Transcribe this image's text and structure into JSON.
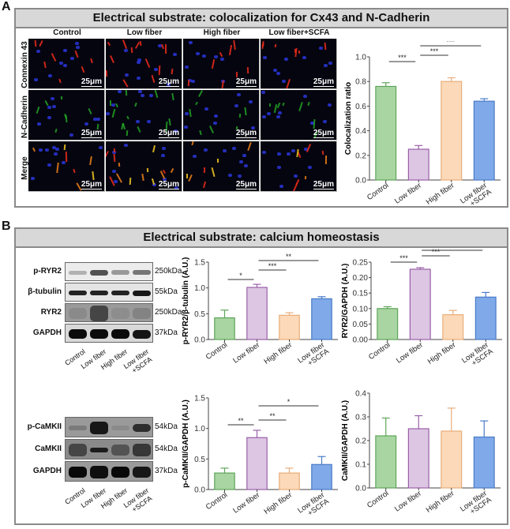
{
  "panel_a": {
    "letter": "A",
    "title": "Electrical substrate: colocalization for Cx43 and N-Cadherin",
    "columns": [
      "Control",
      "Low fiber",
      "High fiber",
      "Low fiber+SCFA"
    ],
    "rows": [
      "Connexin 43",
      "N-Cadherin",
      "Merge"
    ],
    "scale_bar": "25μm"
  },
  "panel_b": {
    "letter": "B",
    "title": "Electrical substrate: calcium homeostasis",
    "blot_top": {
      "bands": [
        {
          "label": "p-RYR2",
          "kda": "250kDa"
        },
        {
          "label": "β-tubulin",
          "kda": "55kDa"
        },
        {
          "label": "RYR2",
          "kda": "250kDa"
        },
        {
          "label": "GAPDH",
          "kda": "37kDa"
        }
      ],
      "lanes": [
        "Control",
        "Low fiber",
        "High fiber",
        "Low fiber",
        "+SCFA"
      ]
    },
    "blot_bottom": {
      "bands": [
        {
          "label": "p-CaMKII",
          "kda": "54kDa"
        },
        {
          "label": "CaMKII",
          "kda": "54kDa"
        },
        {
          "label": "GAPDH",
          "kda": "37kDa"
        }
      ],
      "lanes": [
        "Control",
        "Low fiber",
        "High fiber",
        "Low fiber",
        "+SCFA"
      ]
    }
  },
  "colors": {
    "control": {
      "fill": "#a8d5a2",
      "stroke": "#5fa55a"
    },
    "low_fiber": {
      "fill": "#dcc6e3",
      "stroke": "#9a5fa8"
    },
    "high_fiber": {
      "fill": "#fcd9b8",
      "stroke": "#e8ad7a"
    },
    "low_fiber_scfa": {
      "fill": "#7fa9e8",
      "stroke": "#4a7bc8"
    }
  },
  "chart_data": [
    {
      "type": "bar",
      "id": "colocalization",
      "categories": [
        "Control",
        "Low fiber",
        "High fiber",
        "Low fiber +SCFA"
      ],
      "values": [
        0.76,
        0.25,
        0.8,
        0.64
      ],
      "errors": [
        0.03,
        0.03,
        0.03,
        0.02
      ],
      "title": "",
      "xlabel": "",
      "ylabel": "Colocalization ratio",
      "ylim": [
        0,
        1.0
      ],
      "yticks": [
        "0.0",
        "0.2",
        "0.4",
        "0.6",
        "0.8",
        "1.0"
      ],
      "significance": [
        {
          "from": "Control",
          "to": "Low fiber",
          "label": "***"
        },
        {
          "from": "Low fiber",
          "to": "High fiber",
          "label": "***"
        },
        {
          "from": "Low fiber",
          "to": "Low fiber +SCFA",
          "label": "***"
        }
      ]
    },
    {
      "type": "bar",
      "id": "p_ryr2_tubulin",
      "categories": [
        "Control",
        "Low fiber",
        "High fiber",
        "Low fiber +SCFA"
      ],
      "values": [
        0.42,
        1.01,
        0.47,
        0.79
      ],
      "errors": [
        0.15,
        0.06,
        0.05,
        0.04
      ],
      "ylabel": "p-RYR2/β-tubulin (A.U.)",
      "ylim": [
        0,
        1.5
      ],
      "yticks": [
        "0.0",
        "0.5",
        "1.0",
        "1.5"
      ],
      "significance": [
        {
          "from": "Control",
          "to": "Low fiber",
          "label": "*"
        },
        {
          "from": "Low fiber",
          "to": "High fiber",
          "label": "***"
        },
        {
          "from": "Low fiber",
          "to": "Low fiber +SCFA",
          "label": "**"
        }
      ]
    },
    {
      "type": "bar",
      "id": "ryr2_gapdh",
      "categories": [
        "Control",
        "Low fiber",
        "High fiber",
        "Low fiber +SCFA"
      ],
      "values": [
        0.1,
        0.227,
        0.08,
        0.137
      ],
      "errors": [
        0.006,
        0.005,
        0.014,
        0.015
      ],
      "ylabel": "RYR2/GAPDH (A.U.)",
      "ylim": [
        0,
        0.25
      ],
      "yticks": [
        "0.00",
        "0.05",
        "0.10",
        "0.15",
        "0.20",
        "0.25"
      ],
      "significance": [
        {
          "from": "Control",
          "to": "Low fiber",
          "label": "***"
        },
        {
          "from": "Low fiber",
          "to": "High fiber",
          "label": "***"
        },
        {
          "from": "Low fiber",
          "to": "Low fiber +SCFA",
          "label": "**"
        }
      ]
    },
    {
      "type": "bar",
      "id": "p_camkii_gapdh",
      "categories": [
        "Control",
        "Low fiber",
        "High fiber",
        "Low fiber +SCFA"
      ],
      "values": [
        0.27,
        0.85,
        0.27,
        0.41
      ],
      "errors": [
        0.08,
        0.12,
        0.08,
        0.13
      ],
      "ylabel": "p-CaMKII/GAPDH (A.U.)",
      "ylim": [
        0,
        1.5
      ],
      "yticks": [
        "0.0",
        "0.5",
        "1.0",
        "1.5"
      ],
      "significance": [
        {
          "from": "Control",
          "to": "Low fiber",
          "label": "**"
        },
        {
          "from": "Low fiber",
          "to": "High fiber",
          "label": "**"
        },
        {
          "from": "Low fiber",
          "to": "Low fiber +SCFA",
          "label": "*"
        }
      ]
    },
    {
      "type": "bar",
      "id": "camkii_gapdh",
      "categories": [
        "Control",
        "Low fiber",
        "High fiber",
        "Low fiber +SCFA"
      ],
      "values": [
        0.22,
        0.25,
        0.24,
        0.215
      ],
      "errors": [
        0.075,
        0.055,
        0.097,
        0.068
      ],
      "ylabel": "CaMKII/GAPDH (A.U.)",
      "ylim": [
        0,
        0.4
      ],
      "yticks": [
        "0.0",
        "0.1",
        "0.2",
        "0.3",
        "0.4"
      ],
      "significance": []
    }
  ]
}
